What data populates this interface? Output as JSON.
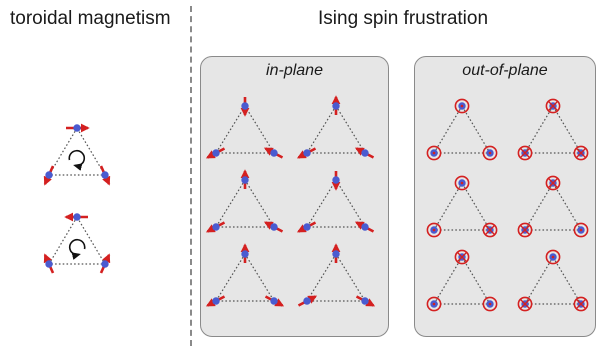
{
  "headings": {
    "left": "toroidal magnetism",
    "right": "Ising spin frustration"
  },
  "panels": {
    "in_plane": "in-plane",
    "out_of_plane": "out-of-plane"
  },
  "colors": {
    "spin_arrow": "#d42020",
    "site": "#4a5bd0",
    "bond": "#555555",
    "panel_bg": "#e6e6e6",
    "divider": "#8a8a8a",
    "rotation": "#111111"
  },
  "toroidal": [
    {
      "name": "toroidal-triangle-clockwise",
      "rotation": "clockwise"
    },
    {
      "name": "toroidal-triangle-counterclockwise",
      "rotation": "counterclockwise"
    }
  ],
  "in_plane_configs": 6,
  "out_of_plane_configs": 6
}
